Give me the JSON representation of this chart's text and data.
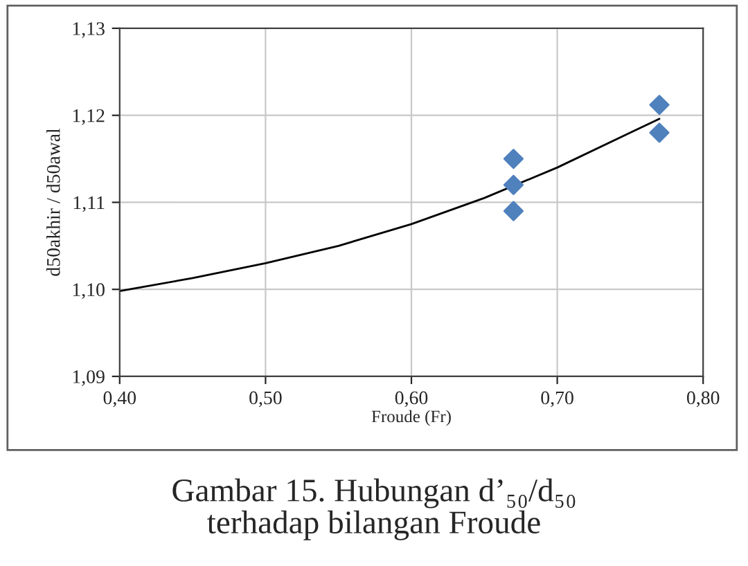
{
  "chart_data": {
    "type": "scatter",
    "xlabel": "Froude (Fr)",
    "ylabel": "d50akhir / d50awal",
    "annotations": [
      "Gambar 15. Hubungan d’₅₀/d₅₀\nterhadap bilangan Froude"
    ],
    "series": [
      {
        "color": "#4f81bd",
        "marker": "diamond",
        "x": [
          0.67,
          0.67,
          0.67,
          0.77,
          0.77
        ],
        "values": [
          1.115,
          1.112,
          1.109,
          1.1212,
          1.118
        ]
      },
      {
        "type": "line",
        "color": "#000000",
        "marker": "none",
        "x": [
          0.4,
          0.45,
          0.5,
          0.55,
          0.6,
          0.65,
          0.7,
          0.75,
          0.77
        ],
        "values": [
          1.0998,
          1.1013,
          1.103,
          1.105,
          1.1075,
          1.1105,
          1.114,
          1.118,
          1.1196
        ]
      }
    ],
    "xlim": [
      0.4,
      0.8
    ],
    "ylim": [
      1.09,
      1.13
    ],
    "xticks": [
      {
        "value": 0.4,
        "label": "0,40"
      },
      {
        "value": 0.5,
        "label": "0,50"
      },
      {
        "value": 0.6,
        "label": "0,60"
      },
      {
        "value": 0.7,
        "label": "0,70"
      },
      {
        "value": 0.8,
        "label": "0,80"
      }
    ],
    "yticks": [
      {
        "value": 1.09,
        "label": "1,09"
      },
      {
        "value": 1.1,
        "label": "1,10"
      },
      {
        "value": 1.11,
        "label": "1,11"
      },
      {
        "value": 1.12,
        "label": "1,12"
      },
      {
        "value": 1.13,
        "label": "1,13"
      }
    ],
    "grid": true,
    "legend": false
  }
}
